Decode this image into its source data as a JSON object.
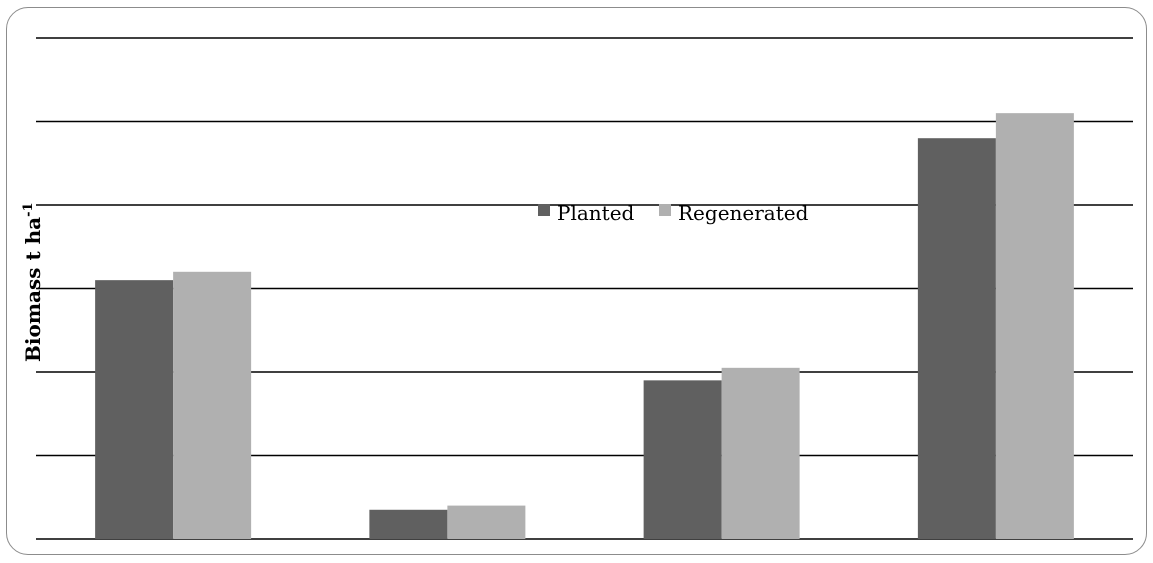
{
  "chart_data": {
    "type": "bar",
    "categories": [
      "",
      "",
      "",
      ""
    ],
    "series": [
      {
        "name": "Planted",
        "values": [
          6.2,
          0.7,
          3.8,
          9.6
        ],
        "color": "#606060"
      },
      {
        "name": "Regenerated",
        "values": [
          6.4,
          0.8,
          4.1,
          10.2
        ],
        "color": "#b0b0b0"
      }
    ],
    "ylabel": "Biomass t ha",
    "ylabel_sup": "-1",
    "ylim": [
      0,
      12
    ],
    "y_gridlines": [
      0,
      2,
      4,
      6,
      8,
      10,
      12
    ],
    "grid": true,
    "legend_position": "center-top",
    "xlabel": "",
    "title": ""
  }
}
